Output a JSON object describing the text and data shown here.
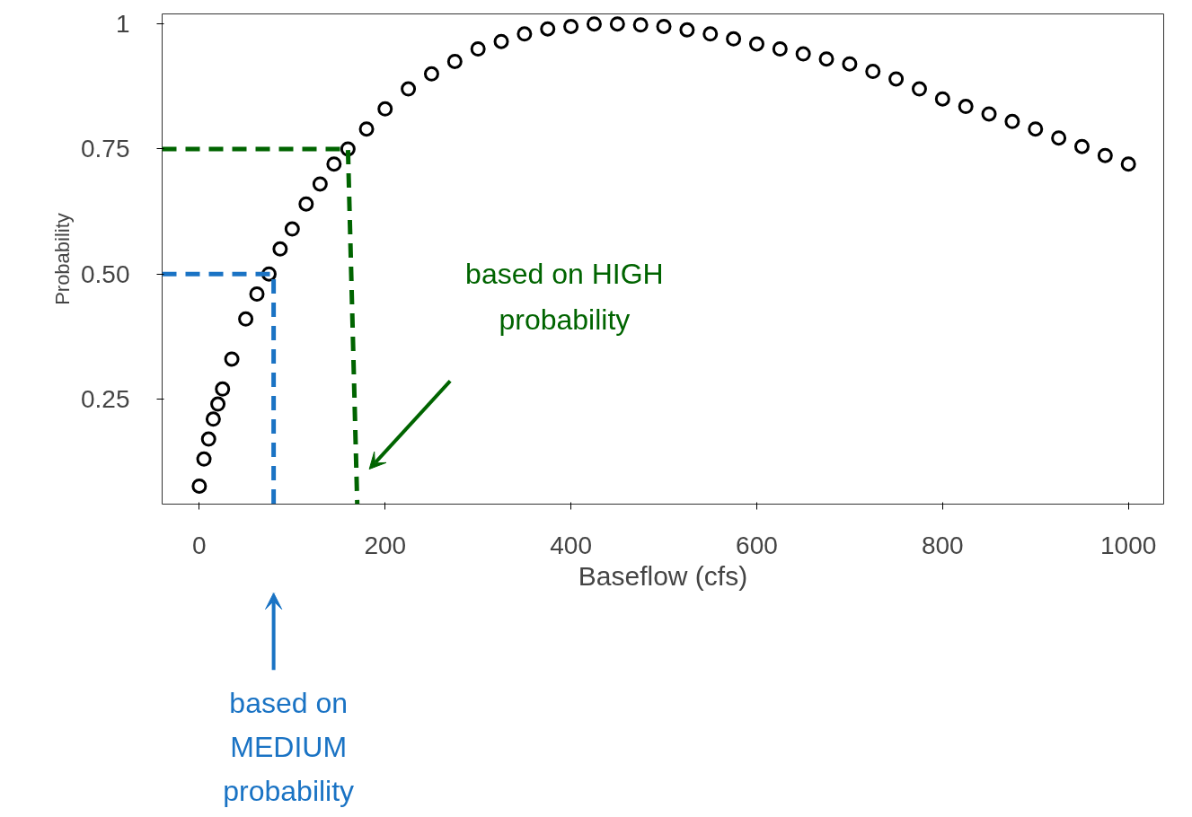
{
  "chart_data": {
    "type": "scatter",
    "xlabel": "Baseflow (cfs)",
    "ylabel": "Probability",
    "xlim": [
      -40,
      1038
    ],
    "ylim": [
      0.04,
      1.02
    ],
    "xticks": [
      0,
      200,
      400,
      600,
      800,
      1000
    ],
    "yticks": [
      {
        "value": 0.25,
        "label": "0.25"
      },
      {
        "value": 0.5,
        "label": "0.50"
      },
      {
        "value": 0.75,
        "label": "0.75"
      },
      {
        "value": 1,
        "label": "1"
      }
    ],
    "grid": false,
    "marker": "circle",
    "series": [
      {
        "color": "#000000",
        "x": [
          0,
          5,
          10,
          15,
          20,
          25,
          35,
          50,
          62,
          75,
          87,
          100,
          115,
          130,
          145,
          160,
          180,
          200,
          225,
          250,
          275,
          300,
          325,
          350,
          375,
          400,
          425,
          450,
          475,
          500,
          525,
          550,
          575,
          600,
          625,
          650,
          675,
          700,
          725,
          750,
          775,
          800,
          825,
          850,
          875,
          900,
          925,
          950,
          975,
          1000
        ],
        "values": [
          0.076,
          0.13,
          0.17,
          0.21,
          0.24,
          0.27,
          0.33,
          0.41,
          0.46,
          0.5,
          0.55,
          0.59,
          0.64,
          0.68,
          0.72,
          0.75,
          0.79,
          0.83,
          0.87,
          0.9,
          0.925,
          0.95,
          0.965,
          0.98,
          0.99,
          0.995,
          1.0,
          1.0,
          0.998,
          0.995,
          0.988,
          0.98,
          0.97,
          0.96,
          0.95,
          0.94,
          0.93,
          0.92,
          0.905,
          0.89,
          0.87,
          0.85,
          0.835,
          0.82,
          0.805,
          0.79,
          0.772,
          0.755,
          0.737,
          0.72
        ]
      },
      {
        "type": "line",
        "line_style": "dashed",
        "marker": "none",
        "color": "#006400",
        "x": [
          -40,
          160,
          170
        ],
        "values": [
          0.75,
          0.75,
          0.04
        ]
      },
      {
        "type": "line",
        "line_style": "dashed",
        "marker": "none",
        "color": "#1a73c4",
        "x": [
          -40,
          80,
          80
        ],
        "values": [
          0.5,
          0.5,
          0.04
        ]
      }
    ],
    "annotations": [
      "based on HIGH\nprobability",
      "based on\nMEDIUM\nprobability"
    ]
  }
}
